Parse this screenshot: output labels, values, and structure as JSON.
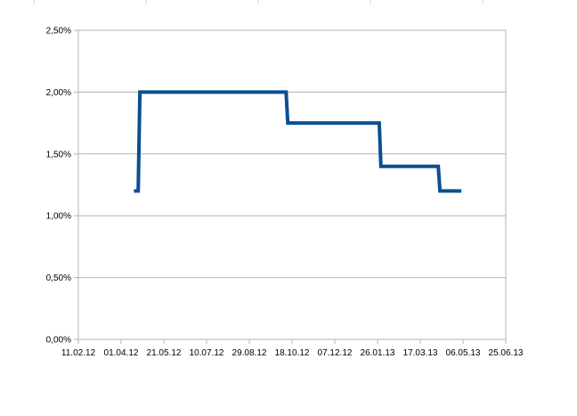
{
  "chart_data": {
    "type": "line",
    "title": "",
    "xlabel": "",
    "ylabel": "",
    "x_axis": {
      "type": "date",
      "min": "2012-02-11",
      "max": "2013-06-25",
      "ticks": [
        "11.02.12",
        "01.04.12",
        "21.05.12",
        "10.07.12",
        "29.08.12",
        "18.10.12",
        "07.12.12",
        "26.01.13",
        "17.03.13",
        "06.05.13",
        "25.06.13"
      ]
    },
    "y_axis": {
      "min": 0,
      "max": 0.025,
      "ticks": [
        "0,00%",
        "0,50%",
        "1,00%",
        "1,50%",
        "2,00%",
        "2,50%"
      ]
    },
    "grid": {
      "horizontal": true,
      "vertical": false
    },
    "series": [
      {
        "color": "#0b4f91",
        "step": true,
        "points": [
          {
            "x": "2012-04-16",
            "y": 0.012
          },
          {
            "x": "2012-04-21",
            "y": 0.012
          },
          {
            "x": "2012-04-23",
            "y": 0.02
          },
          {
            "x": "2012-10-11",
            "y": 0.02
          },
          {
            "x": "2012-10-13",
            "y": 0.0175
          },
          {
            "x": "2013-01-28",
            "y": 0.0175
          },
          {
            "x": "2013-01-30",
            "y": 0.014
          },
          {
            "x": "2013-04-07",
            "y": 0.014
          },
          {
            "x": "2013-04-09",
            "y": 0.012
          },
          {
            "x": "2013-05-04",
            "y": 0.012
          }
        ]
      }
    ]
  }
}
